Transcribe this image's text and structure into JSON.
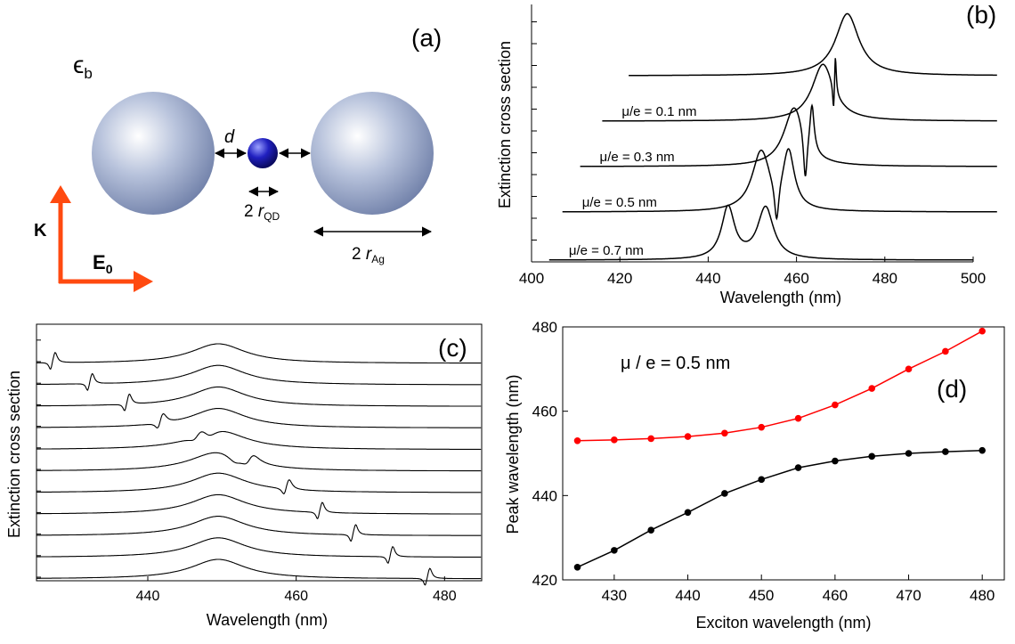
{
  "panel_a": {
    "label": "(a)",
    "medium_symbol": "ϵ",
    "medium_sub": "b",
    "d_label": "d",
    "qd_size_prefix": "2 ",
    "qd_size_r": "r",
    "qd_size_sub": "QD",
    "ag_size_prefix": "2 ",
    "ag_size_r": "r",
    "ag_size_sub": "Ag",
    "k_label": "K",
    "e_label": "E",
    "e_sub": "0",
    "arrow_color": "#ff4a10",
    "sphere_color": "#8ea0c8",
    "qd_color": "#1a1aa6"
  },
  "chart_data": [
    {
      "panel": "b",
      "type": "line",
      "label": "(b)",
      "xlabel": "Wavelength (nm)",
      "ylabel": "Extinction cross section",
      "xlim": [
        400,
        500
      ],
      "xticks": [
        400,
        420,
        440,
        460,
        480,
        500
      ],
      "curves": [
        {
          "name": "μ/e =  0.7  nm",
          "baseline": 0.0,
          "x_start": 404,
          "x_end": 500,
          "peaks": [
            {
              "x0": 444.5,
              "g": 1.8,
              "a": 1.0
            },
            {
              "x0": 453.0,
              "g": 2.2,
              "a": 1.0
            }
          ],
          "dips": [
            {
              "x0": 448.0,
              "g": 1.0,
              "a": 0.0
            }
          ]
        },
        {
          "name": "μ/e =  0.5  nm",
          "baseline": 0.9,
          "x_start": 407,
          "x_end": 506,
          "peaks": [
            {
              "x0": 452.0,
              "g": 2.5,
              "a": 1.15
            },
            {
              "x0": 458.2,
              "g": 1.6,
              "a": 1.1
            }
          ],
          "dips": [
            {
              "x0": 455.5,
              "g": 0.6,
              "a": 0.8
            }
          ]
        },
        {
          "name": "μ/e =  0.3  nm",
          "baseline": 1.75,
          "x_start": 411,
          "x_end": 512,
          "peaks": [
            {
              "x0": 459.5,
              "g": 2.8,
              "a": 1.15
            },
            {
              "x0": 463.5,
              "g": 0.6,
              "a": 0.9
            }
          ],
          "dips": [
            {
              "x0": 462.0,
              "g": 0.5,
              "a": 0.95
            }
          ]
        },
        {
          "name": "μ/e =  0.1  nm",
          "baseline": 2.6,
          "x_start": 416,
          "x_end": 518,
          "peaks": [
            {
              "x0": 466.0,
              "g": 3.0,
              "a": 1.1
            },
            {
              "x0": 468.8,
              "g": 0.25,
              "a": 0.8
            }
          ],
          "dips": [
            {
              "x0": 468.4,
              "g": 0.25,
              "a": 0.6
            }
          ]
        },
        {
          "name": "",
          "baseline": 3.45,
          "x_start": 422,
          "x_end": 524,
          "peaks": [
            {
              "x0": 471.5,
              "g": 3.2,
              "a": 1.2
            }
          ],
          "dips": []
        }
      ]
    },
    {
      "panel": "c",
      "type": "line",
      "label": "(c)",
      "xlabel": "Wavelength (nm)",
      "ylabel": "Extinction cross section",
      "xlim": [
        425,
        485
      ],
      "xticks": [
        440,
        460,
        480
      ],
      "exciton_wavelengths": [
        478,
        473,
        468,
        463.5,
        459,
        454,
        447,
        442,
        437.5,
        432.5,
        427.5
      ]
    },
    {
      "panel": "d",
      "type": "line",
      "label": "(d)",
      "annotation": "μ / e = 0.5 nm",
      "xlabel": "Exciton wavelength  (nm)",
      "ylabel": "Peak wavelength  (nm)",
      "xlim": [
        423,
        483
      ],
      "ylim": [
        420,
        480
      ],
      "xticks": [
        430,
        440,
        450,
        460,
        470,
        480
      ],
      "yticks": [
        420,
        440,
        460,
        480
      ],
      "x": [
        425,
        430,
        435,
        440,
        445,
        450,
        455,
        460,
        465,
        470,
        475,
        480
      ],
      "series": [
        {
          "name": "",
          "color": "#ff0000",
          "values": [
            453.0,
            453.2,
            453.5,
            454.0,
            454.8,
            456.2,
            458.3,
            461.5,
            465.4,
            470.0,
            474.2,
            479.0
          ]
        },
        {
          "name": "",
          "color": "#000000",
          "values": [
            423.0,
            427.0,
            431.8,
            436.0,
            440.5,
            443.8,
            446.6,
            448.2,
            449.3,
            450.0,
            450.4,
            450.7
          ]
        }
      ]
    }
  ]
}
